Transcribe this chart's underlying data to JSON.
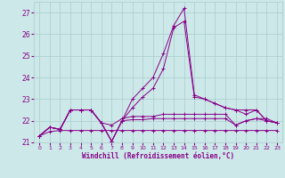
{
  "xlabel": "Windchill (Refroidissement éolien,°C)",
  "bg_color": "#cce8e8",
  "grid_color": "#aacccc",
  "line_color": "#880088",
  "xlim": [
    -0.5,
    23.5
  ],
  "ylim": [
    21.0,
    27.5
  ],
  "yticks": [
    21,
    22,
    23,
    24,
    25,
    26,
    27
  ],
  "xticks": [
    0,
    1,
    2,
    3,
    4,
    5,
    6,
    7,
    8,
    9,
    10,
    11,
    12,
    13,
    14,
    15,
    16,
    17,
    18,
    19,
    20,
    21,
    22,
    23
  ],
  "lines": [
    {
      "x": [
        0,
        1,
        2,
        3,
        4,
        5,
        6,
        7,
        8,
        9,
        10,
        11,
        12,
        13,
        14,
        15,
        16,
        17,
        18,
        19,
        20,
        21,
        22,
        23
      ],
      "y": [
        21.3,
        21.5,
        21.55,
        21.55,
        21.55,
        21.55,
        21.55,
        21.55,
        21.55,
        21.55,
        21.55,
        21.55,
        21.55,
        21.55,
        21.55,
        21.55,
        21.55,
        21.55,
        21.55,
        21.55,
        21.55,
        21.55,
        21.55,
        21.55
      ]
    },
    {
      "x": [
        0,
        1,
        2,
        3,
        4,
        5,
        6,
        7,
        8,
        9,
        10,
        11,
        12,
        13,
        14,
        15,
        16,
        17,
        18,
        19,
        20,
        21,
        22,
        23
      ],
      "y": [
        21.3,
        21.7,
        21.6,
        22.5,
        22.5,
        22.5,
        21.9,
        21.8,
        22.1,
        22.2,
        22.2,
        22.2,
        22.3,
        22.3,
        22.3,
        22.3,
        22.3,
        22.3,
        22.3,
        21.8,
        22.0,
        22.1,
        22.0,
        21.9
      ]
    },
    {
      "x": [
        0,
        1,
        2,
        3,
        4,
        5,
        6,
        7,
        8,
        9,
        10,
        11,
        12,
        13,
        14,
        15,
        16,
        17,
        18,
        19,
        20,
        21,
        22,
        23
      ],
      "y": [
        21.3,
        21.7,
        21.6,
        22.5,
        22.5,
        22.5,
        21.9,
        21.05,
        22.0,
        22.05,
        22.05,
        22.1,
        22.1,
        22.1,
        22.1,
        22.1,
        22.1,
        22.1,
        22.1,
        21.8,
        22.0,
        22.1,
        22.1,
        21.9
      ]
    },
    {
      "x": [
        0,
        1,
        2,
        3,
        4,
        5,
        6,
        7,
        8,
        9,
        10,
        11,
        12,
        13,
        14,
        15,
        16,
        17,
        18,
        19,
        20,
        21,
        22,
        23
      ],
      "y": [
        21.3,
        21.7,
        21.6,
        22.5,
        22.5,
        22.5,
        21.9,
        21.05,
        22.0,
        23.0,
        23.5,
        24.0,
        25.1,
        26.4,
        27.2,
        23.2,
        23.0,
        22.8,
        22.6,
        22.5,
        22.5,
        22.5,
        22.0,
        21.9
      ]
    },
    {
      "x": [
        0,
        1,
        2,
        3,
        4,
        5,
        6,
        7,
        8,
        9,
        10,
        11,
        12,
        13,
        14,
        15,
        16,
        17,
        18,
        19,
        20,
        21,
        22,
        23
      ],
      "y": [
        21.3,
        21.7,
        21.6,
        22.5,
        22.5,
        22.5,
        21.9,
        21.05,
        22.0,
        22.6,
        23.1,
        23.5,
        24.4,
        26.3,
        26.6,
        23.1,
        23.0,
        22.8,
        22.6,
        22.5,
        22.3,
        22.5,
        22.0,
        21.9
      ]
    }
  ]
}
